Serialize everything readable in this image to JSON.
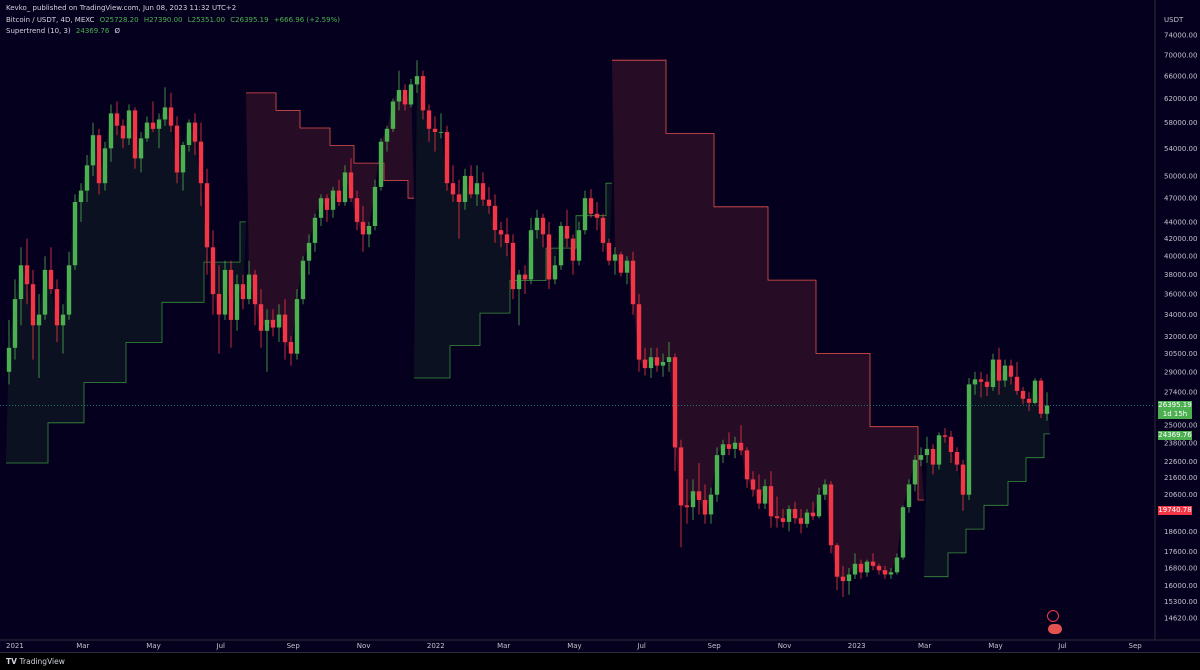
{
  "header": {
    "published": "Kevko_ published on TradingView.com, Jun 08, 2023 11:32 UTC+2",
    "symbol": "Bitcoin / USDT, 4D, MEXC",
    "open": "O25728.20",
    "high": "H27390.00",
    "low": "L25351.00",
    "close": "C26395.19",
    "change": "+666.96 (+2.59%)",
    "indicator": "Supertrend (10, 3)",
    "indicator_value": "24369.76",
    "indicator_flag": "Ø"
  },
  "price_axis": {
    "currency": "USDT",
    "labels": [
      "74000.00",
      "70000.00",
      "66000.00",
      "62000.00",
      "58000.00",
      "54000.00",
      "50000.00",
      "47000.00",
      "44000.00",
      "42000.00",
      "40000.00",
      "38000.00",
      "36000.00",
      "34000.00",
      "32000.00",
      "30500.00",
      "29000.00",
      "27400.00",
      "25000.00",
      "23800.00",
      "22600.00",
      "21600.00",
      "20600.00",
      "18600.00",
      "17600.00",
      "16800.00",
      "16000.00",
      "15300.00",
      "14620.00"
    ]
  },
  "time_axis": {
    "labels": [
      "2021",
      "Mar",
      "May",
      "Jul",
      "Sep",
      "Nov",
      "2022",
      "Mar",
      "May",
      "Jul",
      "Sep",
      "Nov",
      "2023",
      "Mar",
      "May",
      "Jul",
      "Sep"
    ]
  },
  "tags": {
    "last_price": "26395.19",
    "countdown": "1d 15h",
    "supertrend": "24369.76",
    "red_level": "19740.78"
  },
  "footer": {
    "logo_text": "TradingView"
  },
  "colors": {
    "background": "#06001f",
    "up": "#4caf50",
    "down": "#f23645",
    "supertrend_up": "#388e3c",
    "supertrend_down": "#e5514f"
  },
  "chart_data": {
    "type": "candlestick",
    "y_scale": "log",
    "ylim": [
      14620,
      74000
    ],
    "x_range": [
      "2021-01",
      "2023-09"
    ],
    "ohlc": [
      [
        29000,
        33500,
        28000,
        31000
      ],
      [
        31000,
        37500,
        30000,
        35500
      ],
      [
        35500,
        41000,
        33000,
        39000
      ],
      [
        39000,
        42000,
        35000,
        37000
      ],
      [
        37000,
        38500,
        30000,
        33000
      ],
      [
        33000,
        36000,
        28500,
        34000
      ],
      [
        34000,
        40000,
        33500,
        38500
      ],
      [
        38500,
        41000,
        36000,
        36500
      ],
      [
        36500,
        37500,
        31500,
        33000
      ],
      [
        33000,
        35000,
        30500,
        34000
      ],
      [
        34000,
        40500,
        33500,
        39000
      ],
      [
        39000,
        47500,
        38500,
        46500
      ],
      [
        46500,
        49000,
        44000,
        48000
      ],
      [
        48000,
        53000,
        46500,
        51500
      ],
      [
        51500,
        58000,
        50000,
        56000
      ],
      [
        56000,
        57000,
        47500,
        49000
      ],
      [
        49000,
        55000,
        48000,
        54000
      ],
      [
        54000,
        61000,
        52000,
        59500
      ],
      [
        59500,
        61500,
        56000,
        57500
      ],
      [
        57500,
        58500,
        54000,
        55500
      ],
      [
        55500,
        61000,
        54500,
        60000
      ],
      [
        60000,
        60500,
        51000,
        52500
      ],
      [
        52500,
        56500,
        50500,
        55500
      ],
      [
        55500,
        59000,
        55000,
        58000
      ],
      [
        58000,
        61500,
        56500,
        57000
      ],
      [
        57000,
        59500,
        54000,
        58500
      ],
      [
        58500,
        64000,
        57500,
        60500
      ],
      [
        60500,
        63000,
        56500,
        57500
      ],
      [
        57500,
        59000,
        49000,
        50500
      ],
      [
        50500,
        55000,
        48000,
        54500
      ],
      [
        54500,
        58500,
        53500,
        58000
      ],
      [
        58000,
        59500,
        53000,
        55000
      ],
      [
        55000,
        58000,
        46000,
        49000
      ],
      [
        49000,
        51000,
        38000,
        41000
      ],
      [
        41000,
        43000,
        34000,
        36000
      ],
      [
        36000,
        39000,
        30500,
        34000
      ],
      [
        34000,
        39500,
        33500,
        38500
      ],
      [
        38500,
        39500,
        31000,
        33500
      ],
      [
        33500,
        38000,
        32500,
        37000
      ],
      [
        37000,
        38000,
        34500,
        35500
      ],
      [
        35500,
        39500,
        35000,
        38000
      ],
      [
        38000,
        38500,
        33000,
        35000
      ],
      [
        35000,
        36500,
        31000,
        32500
      ],
      [
        32500,
        34500,
        29000,
        33500
      ],
      [
        33500,
        34500,
        32000,
        32800
      ],
      [
        32800,
        35000,
        31500,
        34000
      ],
      [
        34000,
        35500,
        30000,
        31500
      ],
      [
        31500,
        32000,
        29500,
        30500
      ],
      [
        30500,
        36500,
        30000,
        35500
      ],
      [
        35500,
        40000,
        35000,
        39500
      ],
      [
        39500,
        42500,
        38000,
        41500
      ],
      [
        41500,
        45000,
        40500,
        44500
      ],
      [
        44500,
        47500,
        43500,
        47000
      ],
      [
        47000,
        47500,
        44000,
        45500
      ],
      [
        45500,
        48500,
        44500,
        48000
      ],
      [
        48000,
        49500,
        46000,
        46500
      ],
      [
        46500,
        51500,
        46000,
        50500
      ],
      [
        50500,
        52500,
        46500,
        47000
      ],
      [
        47000,
        48000,
        43000,
        44000
      ],
      [
        44000,
        46000,
        40500,
        42500
      ],
      [
        42500,
        44000,
        41000,
        43500
      ],
      [
        43500,
        49500,
        43000,
        48500
      ],
      [
        48500,
        55500,
        48000,
        55000
      ],
      [
        55000,
        57500,
        53500,
        57000
      ],
      [
        57000,
        62000,
        56500,
        61500
      ],
      [
        61500,
        67000,
        60000,
        63500
      ],
      [
        63500,
        64500,
        60000,
        61000
      ],
      [
        61000,
        65500,
        60500,
        64500
      ],
      [
        64500,
        69000,
        63000,
        66000
      ],
      [
        66000,
        67000,
        58500,
        60000
      ],
      [
        60000,
        61000,
        55000,
        57000
      ],
      [
        57000,
        59000,
        53500,
        56500
      ],
      [
        56500,
        59500,
        55500,
        56500
      ],
      [
        56500,
        57500,
        48000,
        49000
      ],
      [
        49000,
        51500,
        46500,
        47500
      ],
      [
        47500,
        49500,
        42000,
        46500
      ],
      [
        46500,
        51000,
        45500,
        50000
      ],
      [
        50000,
        51500,
        47000,
        47500
      ],
      [
        47500,
        51500,
        46000,
        49000
      ],
      [
        49000,
        50500,
        46000,
        46800
      ],
      [
        46800,
        48500,
        45000,
        46000
      ],
      [
        46000,
        47500,
        41500,
        43000
      ],
      [
        43000,
        44000,
        41000,
        42500
      ],
      [
        42500,
        44500,
        40000,
        41500
      ],
      [
        41500,
        42500,
        35500,
        36500
      ],
      [
        36500,
        38500,
        33000,
        38000
      ],
      [
        38000,
        39000,
        36000,
        37500
      ],
      [
        37500,
        44500,
        37000,
        43000
      ],
      [
        43000,
        45500,
        42000,
        44500
      ],
      [
        44500,
        45000,
        41000,
        42500
      ],
      [
        42500,
        44000,
        36500,
        37500
      ],
      [
        37500,
        40000,
        37000,
        39000
      ],
      [
        39000,
        44000,
        38500,
        43500
      ],
      [
        43500,
        45500,
        41000,
        42000
      ],
      [
        42000,
        42500,
        38000,
        39500
      ],
      [
        39500,
        44000,
        39000,
        43000
      ],
      [
        43000,
        48000,
        42500,
        47000
      ],
      [
        47000,
        48200,
        44500,
        45000
      ],
      [
        45000,
        46500,
        43000,
        44500
      ],
      [
        44500,
        45000,
        40500,
        41500
      ],
      [
        41500,
        42000,
        39000,
        39500
      ],
      [
        39500,
        41000,
        38000,
        40200
      ],
      [
        40200,
        40500,
        37800,
        38200
      ],
      [
        38200,
        40000,
        37000,
        39500
      ],
      [
        39500,
        40500,
        34000,
        35000
      ],
      [
        35000,
        36000,
        29000,
        30000
      ],
      [
        30000,
        31000,
        28700,
        29300
      ],
      [
        29300,
        31000,
        28500,
        30200
      ],
      [
        30200,
        31000,
        29000,
        29500
      ],
      [
        29500,
        30500,
        28600,
        29800
      ],
      [
        29800,
        31500,
        29000,
        30200
      ],
      [
        30200,
        30500,
        22000,
        23500
      ],
      [
        23500,
        24000,
        17800,
        20000
      ],
      [
        20000,
        21500,
        19000,
        19900
      ],
      [
        19900,
        21500,
        19200,
        20800
      ],
      [
        20800,
        22500,
        19500,
        20300
      ],
      [
        20300,
        21200,
        19000,
        19500
      ],
      [
        19500,
        21000,
        19000,
        20600
      ],
      [
        20600,
        23500,
        20200,
        23000
      ],
      [
        23000,
        24000,
        22500,
        23700
      ],
      [
        23700,
        24500,
        23000,
        23400
      ],
      [
        23400,
        24200,
        22800,
        23800
      ],
      [
        23800,
        25000,
        23000,
        23300
      ],
      [
        23300,
        23500,
        21000,
        21500
      ],
      [
        21500,
        22000,
        20500,
        20900
      ],
      [
        20900,
        21800,
        19800,
        20100
      ],
      [
        20100,
        21500,
        19800,
        21100
      ],
      [
        21100,
        22000,
        18800,
        19400
      ],
      [
        19400,
        20500,
        18800,
        19300
      ],
      [
        19300,
        19800,
        18800,
        19100
      ],
      [
        19100,
        20000,
        18600,
        19800
      ],
      [
        19800,
        20200,
        19000,
        19300
      ],
      [
        19300,
        19800,
        18500,
        19000
      ],
      [
        19000,
        19800,
        18800,
        19600
      ],
      [
        19600,
        20200,
        19200,
        19400
      ],
      [
        19400,
        21000,
        19300,
        20600
      ],
      [
        20600,
        21500,
        20300,
        21200
      ],
      [
        21200,
        21400,
        17500,
        17900
      ],
      [
        17900,
        18000,
        15800,
        16400
      ],
      [
        16400,
        16900,
        15500,
        16200
      ],
      [
        16200,
        16800,
        15600,
        16500
      ],
      [
        16500,
        17500,
        16300,
        17000
      ],
      [
        17000,
        17200,
        16300,
        16600
      ],
      [
        16600,
        17200,
        16400,
        17100
      ],
      [
        17100,
        17500,
        16700,
        16900
      ],
      [
        16900,
        17000,
        16500,
        16700
      ],
      [
        16700,
        16900,
        16300,
        16500
      ],
      [
        16500,
        16800,
        16300,
        16600
      ],
      [
        16600,
        17500,
        16500,
        17300
      ],
      [
        17300,
        20000,
        17200,
        19900
      ],
      [
        19900,
        21500,
        19600,
        21200
      ],
      [
        21200,
        23000,
        20800,
        22700
      ],
      [
        22700,
        23500,
        22300,
        23000
      ],
      [
        23000,
        24200,
        22500,
        23400
      ],
      [
        23400,
        23700,
        21800,
        22400
      ],
      [
        22400,
        24500,
        22100,
        24300
      ],
      [
        24300,
        24800,
        23800,
        24200
      ],
      [
        24200,
        24600,
        22500,
        23200
      ],
      [
        23200,
        23500,
        22000,
        22400
      ],
      [
        22400,
        22700,
        19700,
        20600
      ],
      [
        20600,
        28500,
        20300,
        28000
      ],
      [
        28000,
        29000,
        27200,
        28400
      ],
      [
        28400,
        29000,
        27000,
        28200
      ],
      [
        28200,
        28800,
        27100,
        27800
      ],
      [
        27800,
        30500,
        27500,
        30000
      ],
      [
        30000,
        31000,
        27200,
        28300
      ],
      [
        28300,
        30000,
        27800,
        29500
      ],
      [
        29500,
        30000,
        28000,
        28600
      ],
      [
        28600,
        29800,
        27200,
        27500
      ],
      [
        27500,
        27800,
        26500,
        26900
      ],
      [
        26900,
        27400,
        26000,
        26600
      ],
      [
        26600,
        28500,
        26500,
        28300
      ],
      [
        28300,
        28500,
        25500,
        25800
      ],
      [
        25800,
        27400,
        25300,
        26400
      ]
    ],
    "supertrend": [
      {
        "from": 0,
        "to": 40,
        "dir": "up",
        "start": 22500,
        "end": 44000
      },
      {
        "from": 40,
        "to": 68,
        "dir": "down",
        "start": 63000,
        "end": 47000
      },
      {
        "from": 68,
        "to": 101,
        "dir": "up",
        "start": 28500,
        "end": 49000
      },
      {
        "from": 101,
        "to": 153,
        "dir": "down",
        "start": 69000,
        "end": 20300
      },
      {
        "from": 153,
        "to": 174,
        "dir": "up",
        "start": 16400,
        "end": 24400
      }
    ]
  }
}
